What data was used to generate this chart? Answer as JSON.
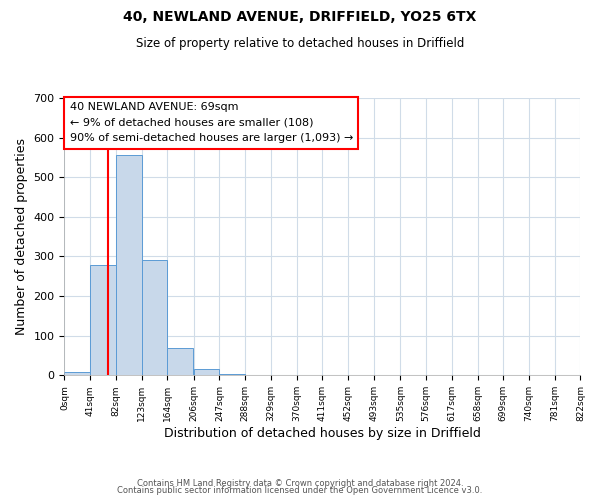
{
  "title": "40, NEWLAND AVENUE, DRIFFIELD, YO25 6TX",
  "subtitle": "Size of property relative to detached houses in Driffield",
  "xlabel": "Distribution of detached houses by size in Driffield",
  "ylabel": "Number of detached properties",
  "bin_edges": [
    0,
    41,
    82,
    123,
    164,
    206,
    247,
    288,
    329,
    370,
    411,
    452,
    493,
    535,
    576,
    617,
    658,
    699,
    740,
    781,
    822
  ],
  "bar_heights": [
    8,
    278,
    557,
    290,
    68,
    15,
    3,
    0,
    0,
    0,
    0,
    0,
    0,
    0,
    0,
    0,
    0,
    0,
    0,
    0
  ],
  "bar_color": "#c8d8ea",
  "bar_edge_color": "#5b9bd5",
  "property_line_x": 69,
  "property_line_color": "red",
  "ylim": [
    0,
    700
  ],
  "yticks": [
    0,
    100,
    200,
    300,
    400,
    500,
    600,
    700
  ],
  "annotation_title": "40 NEWLAND AVENUE: 69sqm",
  "annotation_line1": "← 9% of detached houses are smaller (108)",
  "annotation_line2": "90% of semi-detached houses are larger (1,093) →",
  "annotation_box_color": "white",
  "annotation_box_edge_color": "red",
  "footer_line1": "Contains HM Land Registry data © Crown copyright and database right 2024.",
  "footer_line2": "Contains public sector information licensed under the Open Government Licence v3.0.",
  "background_color": "white",
  "grid_color": "#d0dce8"
}
